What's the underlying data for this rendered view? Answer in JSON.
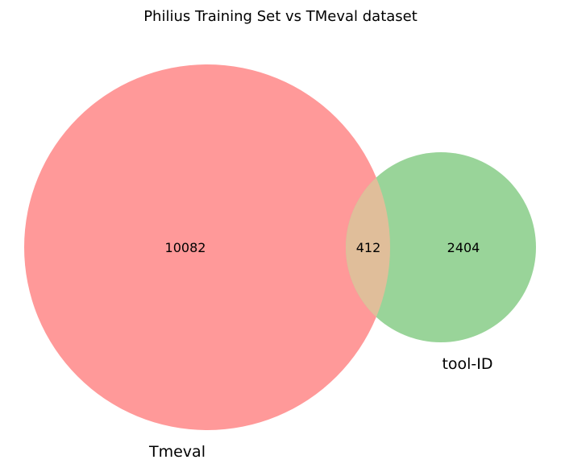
{
  "chart_data": {
    "type": "venn",
    "title": "Philius Training Set vs TMeval dataset",
    "sets": [
      {
        "name": "Tmeval",
        "only_count": "10082",
        "color": "#ff9999"
      },
      {
        "name": "tool-ID",
        "only_count": "2404",
        "color": "#99d499"
      }
    ],
    "intersection": {
      "count": "412",
      "color": "#e0be9a"
    }
  }
}
